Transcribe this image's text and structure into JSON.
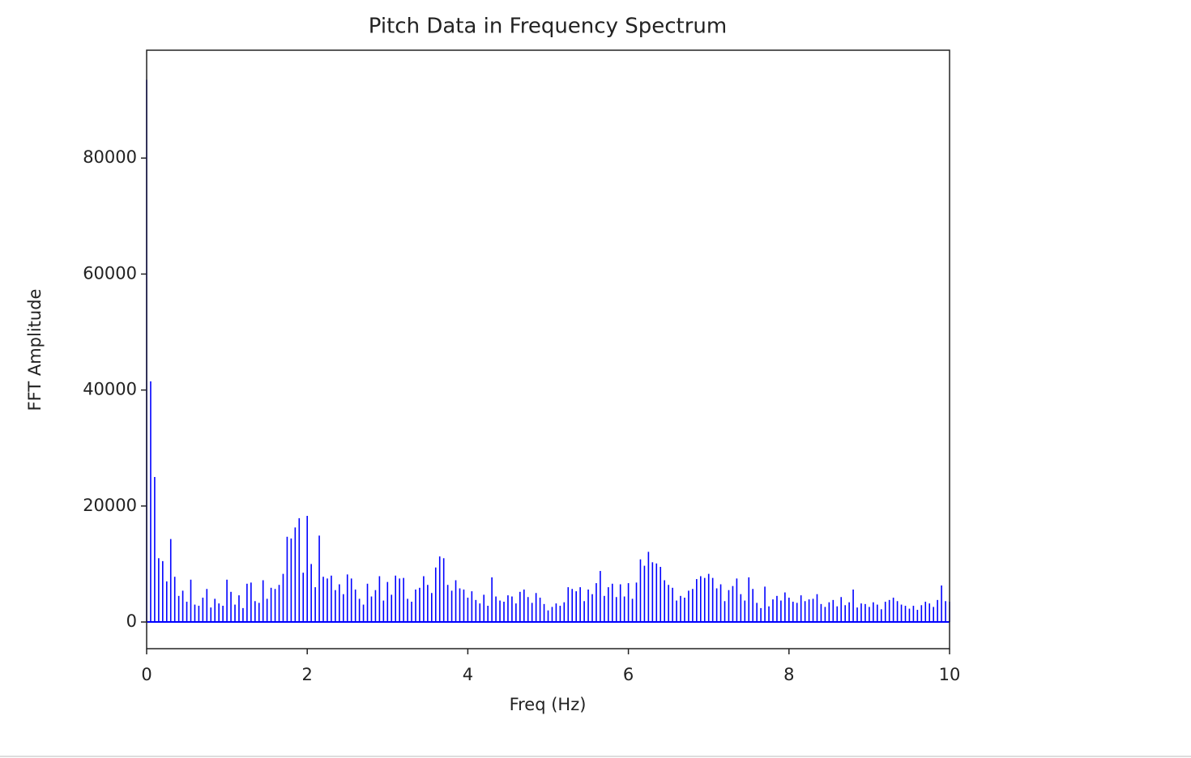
{
  "chart_data": {
    "type": "stem",
    "title": "Pitch Data in Frequency Spectrum",
    "x_label": "Freq (Hz)",
    "y_label": "FFT Amplitude",
    "color": "#0000ff",
    "x": [
      0,
      0.05,
      0.1,
      0.15,
      0.2,
      0.25,
      0.3,
      0.35,
      0.4,
      0.45,
      0.5,
      0.55,
      0.6,
      0.65,
      0.7,
      0.75,
      0.8,
      0.85,
      0.9,
      0.95,
      1,
      1.05,
      1.1,
      1.15,
      1.2,
      1.25,
      1.3,
      1.35,
      1.4,
      1.45,
      1.5,
      1.55,
      1.6,
      1.65,
      1.7,
      1.75,
      1.8,
      1.85,
      1.9,
      1.95,
      2,
      2.05,
      2.1,
      2.15,
      2.2,
      2.25,
      2.3,
      2.35,
      2.4,
      2.45,
      2.5,
      2.55,
      2.6,
      2.65,
      2.7,
      2.75,
      2.8,
      2.85,
      2.9,
      2.95,
      3,
      3.05,
      3.1,
      3.15,
      3.2,
      3.25,
      3.3,
      3.35,
      3.4,
      3.45,
      3.5,
      3.55,
      3.6,
      3.65,
      3.7,
      3.75,
      3.8,
      3.85,
      3.9,
      3.95,
      4,
      4.05,
      4.1,
      4.15,
      4.2,
      4.25,
      4.3,
      4.35,
      4.4,
      4.45,
      4.5,
      4.55,
      4.6,
      4.65,
      4.7,
      4.75,
      4.8,
      4.85,
      4.9,
      4.95,
      5,
      5.05,
      5.1,
      5.15,
      5.2,
      5.25,
      5.3,
      5.35,
      5.4,
      5.45,
      5.5,
      5.55,
      5.6,
      5.65,
      5.7,
      5.75,
      5.8,
      5.85,
      5.9,
      5.95,
      6,
      6.05,
      6.1,
      6.15,
      6.2,
      6.25,
      6.3,
      6.35,
      6.4,
      6.45,
      6.5,
      6.55,
      6.6,
      6.65,
      6.7,
      6.75,
      6.8,
      6.85,
      6.9,
      6.95,
      7,
      7.05,
      7.1,
      7.15,
      7.2,
      7.25,
      7.3,
      7.35,
      7.4,
      7.45,
      7.5,
      7.55,
      7.6,
      7.65,
      7.7,
      7.75,
      7.8,
      7.85,
      7.9,
      7.95,
      8,
      8.05,
      8.1,
      8.15,
      8.2,
      8.25,
      8.3,
      8.35,
      8.4,
      8.45,
      8.5,
      8.55,
      8.6,
      8.65,
      8.7,
      8.75,
      8.8,
      8.85,
      8.9,
      8.95,
      9,
      9.05,
      9.1,
      9.15,
      9.2,
      9.25,
      9.3,
      9.35,
      9.4,
      9.45,
      9.5,
      9.55,
      9.6,
      9.65,
      9.7,
      9.75,
      9.8,
      9.85,
      9.9,
      9.95,
      10
    ],
    "values": [
      93500,
      41500,
      25000,
      11000,
      10500,
      7000,
      14300,
      7800,
      4500,
      5400,
      3500,
      7300,
      3000,
      2800,
      4200,
      5700,
      2500,
      4000,
      3200,
      2800,
      7300,
      5200,
      3000,
      4600,
      2400,
      6600,
      6800,
      3600,
      3300,
      7200,
      4000,
      5900,
      5700,
      6400,
      8300,
      14700,
      14400,
      16300,
      17900,
      8500,
      18300,
      10000,
      6000,
      14900,
      7800,
      7500,
      8000,
      5500,
      6500,
      4800,
      8200,
      7500,
      5600,
      4000,
      3000,
      6600,
      4400,
      5500,
      7900,
      3700,
      6900,
      4700,
      8000,
      7500,
      7600,
      4000,
      3500,
      5600,
      5900,
      7900,
      6400,
      5000,
      9400,
      11300,
      11000,
      6400,
      5400,
      7200,
      5800,
      5600,
      4200,
      5300,
      3800,
      3200,
      4700,
      2800,
      7700,
      4400,
      3700,
      3500,
      4600,
      4400,
      3200,
      5200,
      5600,
      4300,
      3300,
      5000,
      4200,
      3100,
      2000,
      2600,
      3200,
      2800,
      3400,
      6000,
      5700,
      5300,
      6000,
      3600,
      5600,
      4800,
      6700,
      8800,
      4500,
      6000,
      6600,
      4300,
      6500,
      4400,
      6700,
      4000,
      6800,
      10800,
      9700,
      12100,
      10300,
      10100,
      9500,
      7200,
      6400,
      5900,
      3700,
      4500,
      4200,
      5400,
      5700,
      7400,
      7900,
      7600,
      8300,
      7600,
      5800,
      6500,
      3600,
      5500,
      6200,
      7500,
      4800,
      3700,
      7700,
      5700,
      3300,
      2400,
      6100,
      2700,
      3900,
      4500,
      3700,
      5100,
      4200,
      3500,
      3300,
      4600,
      3600,
      3900,
      4000,
      4800,
      3100,
      2600,
      3400,
      3800,
      2700,
      4300,
      2900,
      3400,
      5600,
      2500,
      3200,
      3100,
      2600,
      3400,
      3000,
      2200,
      3500,
      3800,
      4200,
      3600,
      3000,
      2800,
      2300,
      2800,
      2100,
      2900,
      3500,
      3200,
      2600,
      3800,
      6300,
      3600,
      3500
    ],
    "xlim": [
      0,
      10
    ],
    "xticks": [
      0,
      2,
      4,
      6,
      8,
      10
    ],
    "ylim": [
      -4600,
      98600
    ],
    "yticks": [
      0,
      20000,
      40000,
      60000,
      80000
    ]
  }
}
